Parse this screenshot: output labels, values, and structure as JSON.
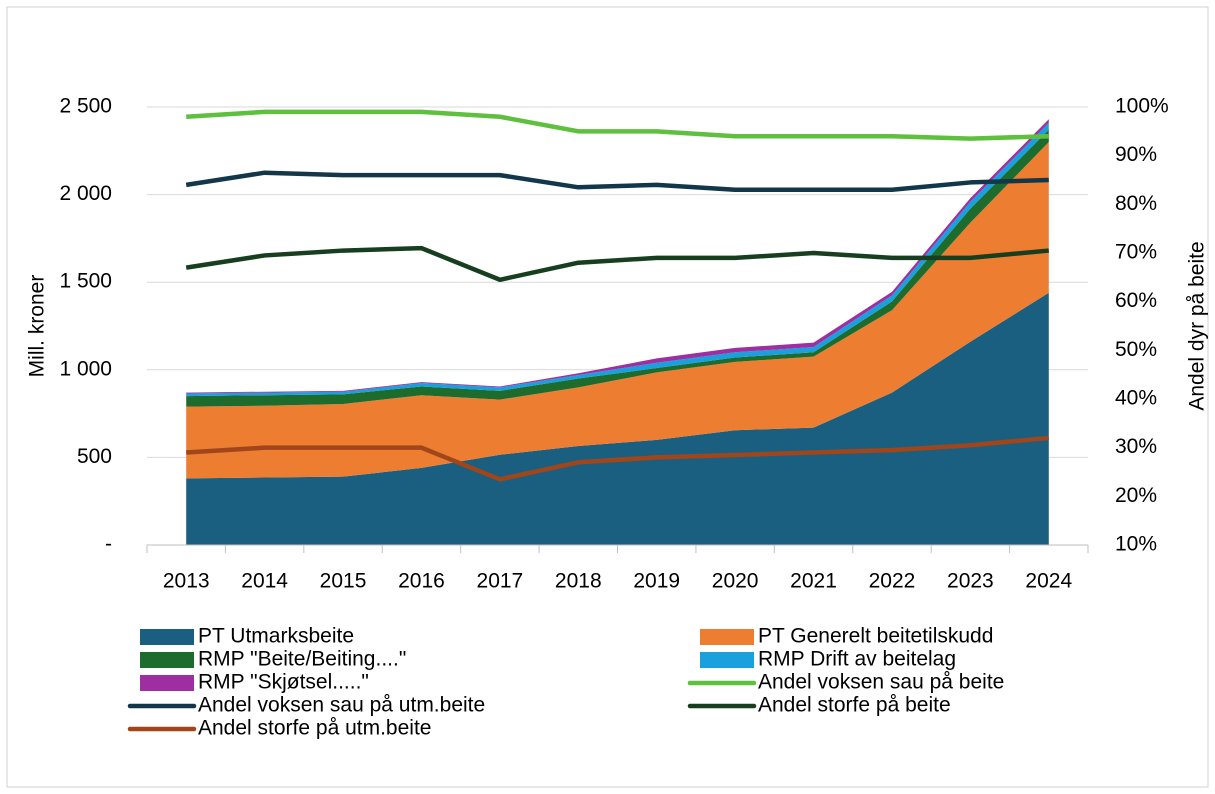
{
  "chart_data": {
    "type": "stacked-area-line",
    "y_label": "Mill. kroner",
    "y2_label": "Andel dyr på beite",
    "categories": [
      "2013",
      "2014",
      "2015",
      "2016",
      "2017",
      "2018",
      "2019",
      "2020",
      "2021",
      "2022",
      "2023",
      "2024"
    ],
    "ylim": [
      0,
      2500
    ],
    "yticks": [
      {
        "value": 0,
        "label": "-"
      },
      500,
      {
        "value": 1000,
        "label": "1 000"
      },
      {
        "value": 1500,
        "label": "1 500"
      },
      {
        "value": 2000,
        "label": "2 000"
      },
      {
        "value": 2500,
        "label": "2 500"
      }
    ],
    "y2lim": [
      10,
      100
    ],
    "y2ticks": [
      {
        "value": 10,
        "label": "10%"
      },
      {
        "value": 20,
        "label": "20%"
      },
      {
        "value": 30,
        "label": "30%"
      },
      {
        "value": 40,
        "label": "40%"
      },
      {
        "value": 50,
        "label": "50%"
      },
      {
        "value": 60,
        "label": "60%"
      },
      {
        "value": 70,
        "label": "70%"
      },
      {
        "value": 80,
        "label": "80%"
      },
      {
        "value": 90,
        "label": "90%"
      },
      {
        "value": 100,
        "label": "100%"
      }
    ],
    "grid": true,
    "series": [
      {
        "name": "PT Utmarksbeite",
        "kind": "area",
        "color": "#1a5f80",
        "values": [
          380,
          385,
          390,
          440,
          515,
          565,
          600,
          655,
          670,
          870,
          1160,
          1440
        ]
      },
      {
        "name": "PT Generelt beitetilskudd",
        "kind": "area",
        "color": "#ed7d31",
        "values": [
          410,
          410,
          415,
          415,
          315,
          335,
          385,
          390,
          405,
          470,
          680,
          860
        ]
      },
      {
        "name": "RMP \"Beite/Beiting....\"",
        "kind": "area",
        "color": "#1e6b2e",
        "values": [
          60,
          60,
          55,
          50,
          50,
          50,
          25,
          25,
          25,
          50,
          80,
          70
        ]
      },
      {
        "name": "RMP Drift av beitelag",
        "kind": "area",
        "color": "#1aa0dc",
        "values": [
          15,
          15,
          15,
          20,
          20,
          20,
          30,
          30,
          30,
          35,
          40,
          40
        ]
      },
      {
        "name": "RMP \"Skjøtsel.....\"",
        "kind": "area",
        "color": "#9e2fa0",
        "values": [
          5,
          5,
          5,
          5,
          5,
          10,
          25,
          25,
          25,
          20,
          20,
          20
        ]
      },
      {
        "name": "Andel voksen sau på beite",
        "kind": "line",
        "axis": "y2",
        "color": "#5fbf3f",
        "values": [
          98,
          99,
          99,
          99,
          98,
          95,
          95,
          94,
          94,
          94,
          93.5,
          94
        ]
      },
      {
        "name": "Andel voksen sau på utm.beite",
        "kind": "line",
        "axis": "y2",
        "color": "#12374b",
        "values": [
          84,
          86.5,
          86,
          86,
          86,
          83.5,
          84,
          83,
          83,
          83,
          84.5,
          85
        ]
      },
      {
        "name": "Andel storfe på beite",
        "kind": "line",
        "axis": "y2",
        "color": "#173f1f",
        "values": [
          67,
          69.5,
          70.5,
          71,
          64.5,
          68,
          69,
          69,
          70,
          69,
          69,
          70.5
        ]
      },
      {
        "name": "Andel storfe på utm.beite",
        "kind": "line",
        "axis": "y2",
        "color": "#a0461a",
        "values": [
          29,
          30,
          30,
          30,
          23.5,
          27,
          28,
          28.5,
          29,
          29.5,
          30.5,
          32
        ]
      }
    ]
  }
}
